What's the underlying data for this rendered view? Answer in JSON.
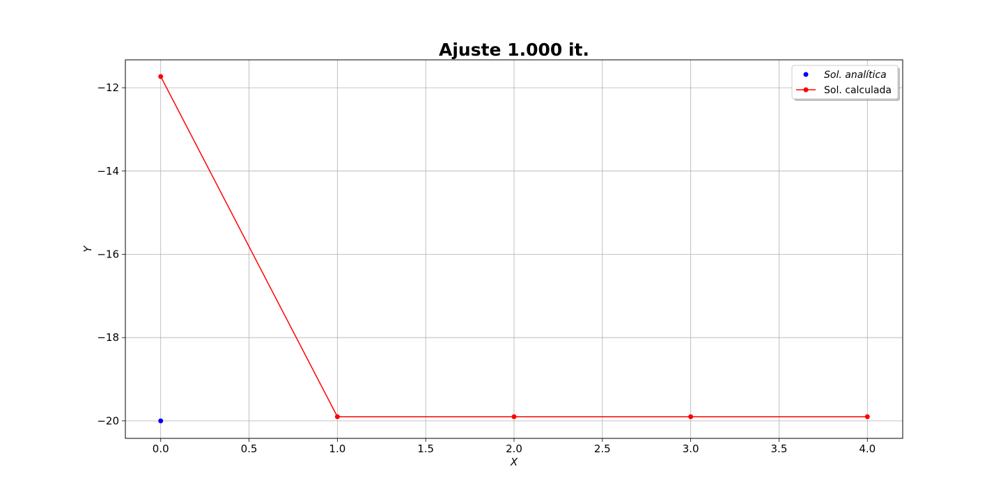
{
  "chart_data": {
    "type": "line",
    "title": "Ajuste 1.000 it.",
    "xlabel": "X",
    "ylabel": "Y",
    "xlim": [
      -0.2,
      4.2
    ],
    "ylim": [
      -20.42,
      -11.33
    ],
    "xticks": [
      0.0,
      0.5,
      1.0,
      1.5,
      2.0,
      2.5,
      3.0,
      3.5,
      4.0
    ],
    "xtick_labels": [
      "0.0",
      "0.5",
      "1.0",
      "1.5",
      "2.0",
      "2.5",
      "3.0",
      "3.5",
      "4.0"
    ],
    "yticks": [
      -12,
      -14,
      -16,
      -18,
      -20
    ],
    "ytick_labels": [
      "−12",
      "−14",
      "−16",
      "−18",
      "−20"
    ],
    "grid": true,
    "legend_position": "top-right",
    "series": [
      {
        "name": "Sol. analítica",
        "style": "markers",
        "color": "#0000ff",
        "x": [
          0
        ],
        "y": [
          -20.0
        ]
      },
      {
        "name": "Sol. calculada",
        "style": "line-markers",
        "color": "#ff0000",
        "x": [
          0,
          1,
          2,
          3,
          4
        ],
        "y": [
          -11.73,
          -19.9,
          -19.9,
          -19.9,
          -19.9
        ]
      }
    ]
  }
}
